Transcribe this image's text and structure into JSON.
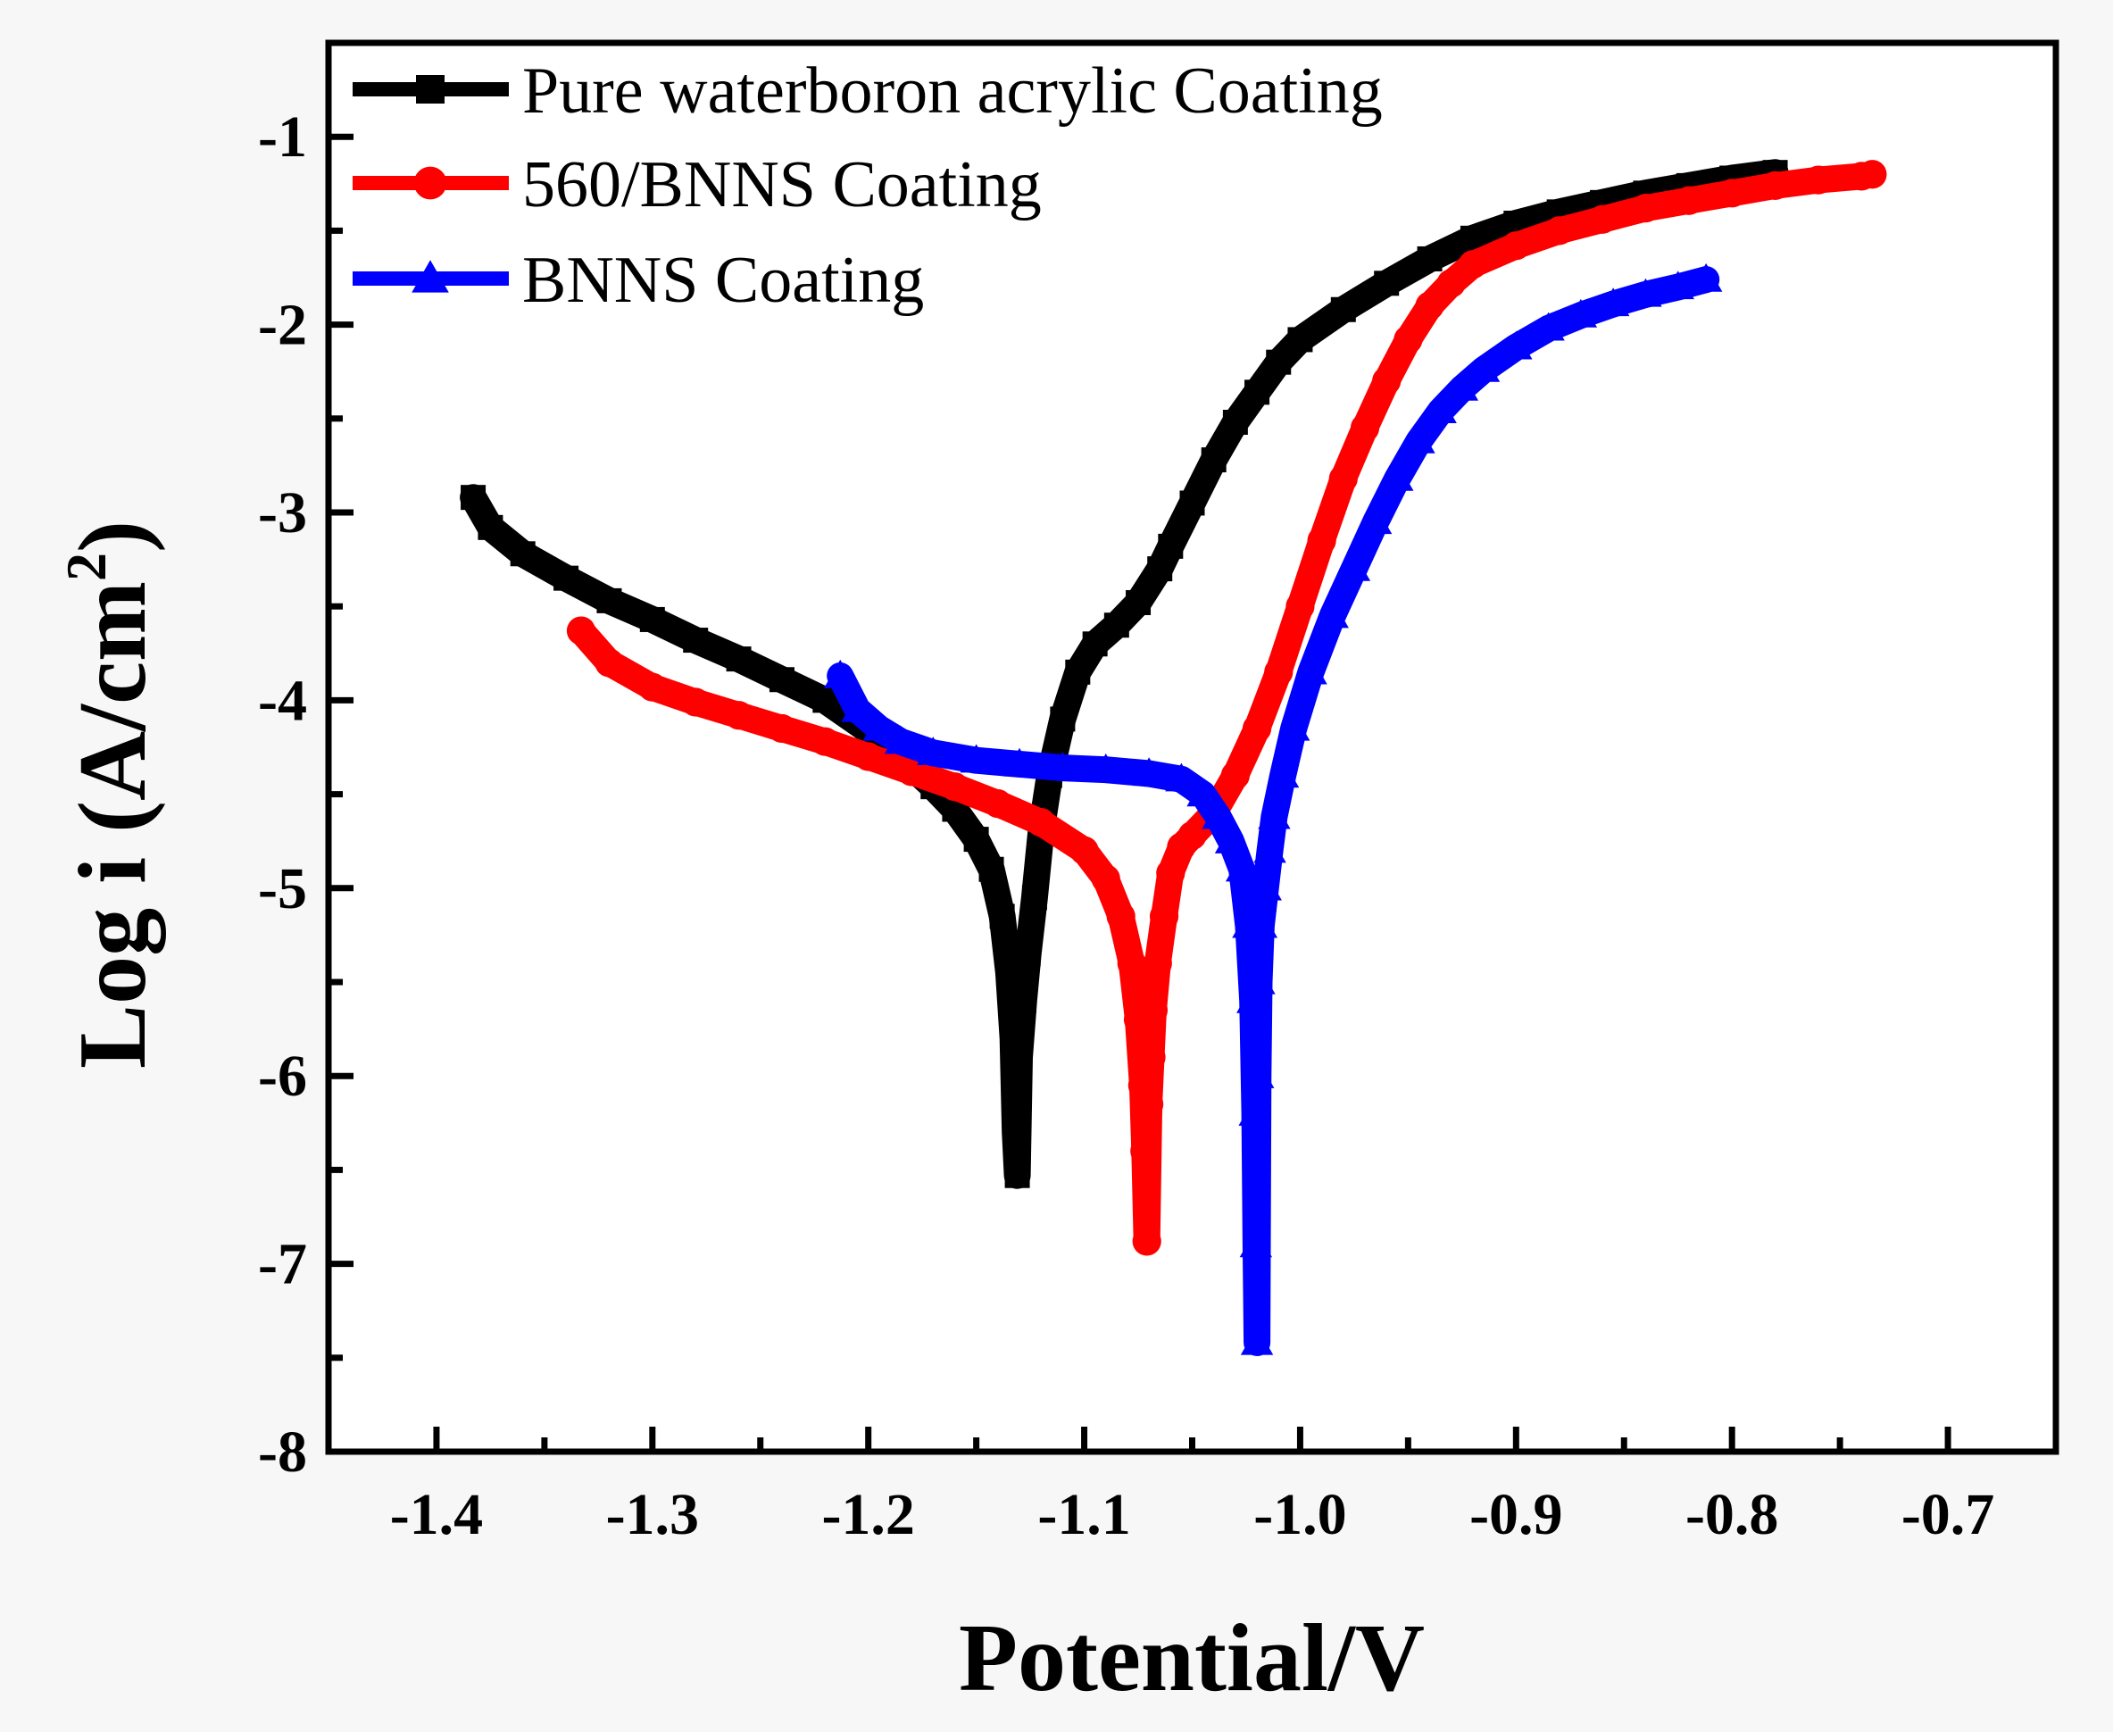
{
  "chart_data": {
    "type": "line",
    "title": "",
    "xlabel": "Potential/V",
    "ylabel_main": "Log i (A/cm",
    "ylabel_sup": "2",
    "ylabel_close": ")",
    "xlim": [
      -1.45,
      -0.65
    ],
    "ylim": [
      -8,
      -0.5
    ],
    "x_ticks": [
      -1.4,
      -1.3,
      -1.2,
      -1.1,
      -1.0,
      -0.9,
      -0.8,
      -0.7
    ],
    "x_tick_labels": [
      "-1.4",
      "-1.3",
      "-1.2",
      "-1.1",
      "-1.0",
      "-0.9",
      "-0.8",
      "-0.7"
    ],
    "y_ticks": [
      -8,
      -7,
      -6,
      -5,
      -4,
      -3,
      -2,
      -1
    ],
    "y_tick_labels": [
      "-8",
      "-7",
      "-6",
      "-5",
      "-4",
      "-3",
      "-2",
      "-1"
    ],
    "grid": false,
    "legend_position": "top-left",
    "series": [
      {
        "name": "Pure waterboron acrylic Coating",
        "color": "#000000",
        "marker": "square",
        "x": [
          -1.383,
          -1.375,
          -1.36,
          -1.34,
          -1.32,
          -1.3,
          -1.28,
          -1.26,
          -1.24,
          -1.22,
          -1.2,
          -1.185,
          -1.17,
          -1.16,
          -1.15,
          -1.143,
          -1.138,
          -1.135,
          -1.133,
          -1.132,
          -1.131,
          -1.13,
          -1.128,
          -1.126,
          -1.123,
          -1.12,
          -1.116,
          -1.11,
          -1.103,
          -1.095,
          -1.085,
          -1.075,
          -1.065,
          -1.06,
          -1.05,
          -1.04,
          -1.03,
          -1.02,
          -1.01,
          -1.0,
          -0.98,
          -0.96,
          -0.94,
          -0.92,
          -0.9,
          -0.88,
          -0.86,
          -0.84,
          -0.82,
          -0.8,
          -0.78
        ],
        "y": [
          -2.92,
          -3.08,
          -3.22,
          -3.35,
          -3.47,
          -3.57,
          -3.68,
          -3.78,
          -3.89,
          -4.0,
          -4.16,
          -4.3,
          -4.46,
          -4.58,
          -4.74,
          -4.9,
          -5.15,
          -5.45,
          -5.8,
          -6.3,
          -6.53,
          -5.9,
          -5.6,
          -5.35,
          -5.05,
          -4.7,
          -4.4,
          -4.1,
          -3.85,
          -3.7,
          -3.6,
          -3.48,
          -3.3,
          -3.18,
          -2.95,
          -2.72,
          -2.52,
          -2.36,
          -2.2,
          -2.08,
          -1.92,
          -1.78,
          -1.65,
          -1.54,
          -1.46,
          -1.4,
          -1.35,
          -1.3,
          -1.26,
          -1.22,
          -1.19
        ]
      },
      {
        "name": "560/BNNS Coating",
        "color": "#ff0000",
        "marker": "circle",
        "x": [
          -1.333,
          -1.32,
          -1.3,
          -1.28,
          -1.26,
          -1.24,
          -1.22,
          -1.2,
          -1.18,
          -1.16,
          -1.14,
          -1.12,
          -1.1,
          -1.09,
          -1.083,
          -1.078,
          -1.075,
          -1.073,
          -1.072,
          -1.071,
          -1.07,
          -1.069,
          -1.068,
          -1.066,
          -1.063,
          -1.06,
          -1.055,
          -1.05,
          -1.04,
          -1.03,
          -1.02,
          -1.01,
          -1.0,
          -0.99,
          -0.98,
          -0.97,
          -0.96,
          -0.95,
          -0.94,
          -0.93,
          -0.92,
          -0.9,
          -0.88,
          -0.86,
          -0.84,
          -0.82,
          -0.8,
          -0.78,
          -0.76,
          -0.74,
          -0.735
        ],
        "y": [
          -3.63,
          -3.8,
          -3.93,
          -4.01,
          -4.08,
          -4.15,
          -4.22,
          -4.3,
          -4.38,
          -4.46,
          -4.55,
          -4.65,
          -4.8,
          -4.95,
          -5.15,
          -5.4,
          -5.7,
          -6.05,
          -6.4,
          -6.88,
          -6.15,
          -5.9,
          -5.65,
          -5.4,
          -5.15,
          -4.92,
          -4.78,
          -4.72,
          -4.6,
          -4.4,
          -4.15,
          -3.85,
          -3.5,
          -3.15,
          -2.82,
          -2.55,
          -2.3,
          -2.08,
          -1.9,
          -1.78,
          -1.68,
          -1.58,
          -1.5,
          -1.44,
          -1.38,
          -1.34,
          -1.3,
          -1.26,
          -1.23,
          -1.21,
          -1.2
        ]
      },
      {
        "name": "BNNS Coating",
        "color": "#0000ff",
        "marker": "triangle",
        "x": [
          -1.213,
          -1.205,
          -1.195,
          -1.185,
          -1.17,
          -1.15,
          -1.13,
          -1.11,
          -1.09,
          -1.07,
          -1.055,
          -1.045,
          -1.038,
          -1.032,
          -1.027,
          -1.024,
          -1.022,
          -1.021,
          -1.0205,
          -1.02,
          -1.0195,
          -1.019,
          -1.018,
          -1.016,
          -1.014,
          -1.012,
          -1.008,
          -1.003,
          -0.995,
          -0.985,
          -0.975,
          -0.965,
          -0.955,
          -0.945,
          -0.935,
          -0.925,
          -0.915,
          -0.9,
          -0.885,
          -0.87,
          -0.855,
          -0.84,
          -0.825,
          -0.812
        ],
        "y": [
          -3.87,
          -4.05,
          -4.15,
          -4.22,
          -4.28,
          -4.32,
          -4.34,
          -4.36,
          -4.37,
          -4.39,
          -4.42,
          -4.5,
          -4.62,
          -4.75,
          -4.9,
          -5.2,
          -5.6,
          -6.2,
          -6.9,
          -7.42,
          -6.0,
          -5.5,
          -5.2,
          -5.0,
          -4.8,
          -4.62,
          -4.4,
          -4.15,
          -3.85,
          -3.55,
          -3.3,
          -3.05,
          -2.82,
          -2.62,
          -2.46,
          -2.34,
          -2.24,
          -2.12,
          -2.02,
          -1.95,
          -1.89,
          -1.84,
          -1.8,
          -1.76
        ]
      }
    ]
  }
}
